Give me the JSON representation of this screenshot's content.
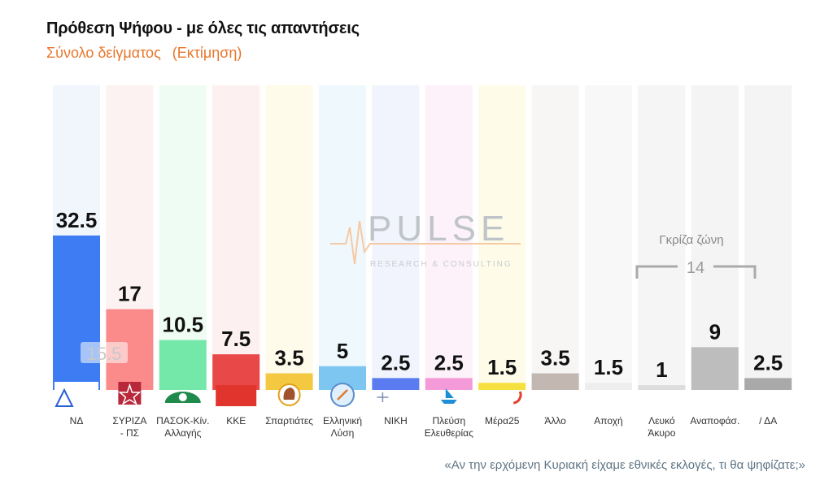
{
  "title": "Πρόθεση Ψήφου - με όλες τις απαντήσεις",
  "subtitle": "Σύνολο δείγματος",
  "subtitle_note": "(Εκτίμηση)",
  "question": "«Αν την ερχόμενη Κυριακή είχαμε εθνικές εκλογές, τι θα ψηφίζατε;»",
  "watermark": {
    "name": "PULSE",
    "tagline": "RESEARCH & CONSULTING"
  },
  "grey_zone": {
    "label": "Γκρίζα ζώνη",
    "value": "14"
  },
  "chart_data": {
    "type": "bar",
    "title": "Πρόθεση Ψήφου - με όλες τις απαντήσεις",
    "subtitle": "Σύνολο δείγματος (Εκτίμηση)",
    "xlabel": "",
    "ylabel": "",
    "ylim": [
      0,
      45
    ],
    "grid": false,
    "categories": [
      {
        "label": "ΝΔ",
        "value": 32.5,
        "color": "#3d7cf2",
        "light": "#f1f6fd"
      },
      {
        "label": "ΣΥΡΙΖΑ\n- ΠΣ",
        "value": 17,
        "color": "#fb8a8a",
        "light": "#fdf2f2"
      },
      {
        "label": "ΠΑΣΟΚ-Κίν.\nΑλλαγής",
        "value": 10.5,
        "color": "#74e8a8",
        "light": "#eefcf3"
      },
      {
        "label": "ΚΚΕ",
        "value": 7.5,
        "color": "#e84848",
        "light": "#fdf0f0"
      },
      {
        "label": "Σπαρτιάτες",
        "value": 3.5,
        "color": "#f5c842",
        "light": "#fefbea"
      },
      {
        "label": "Ελληνική\nΛύση",
        "value": 5,
        "color": "#7ec6f2",
        "light": "#eff8fd"
      },
      {
        "label": "ΝΙΚΗ",
        "value": 2.5,
        "color": "#5a7cf0",
        "light": "#f1f3fd"
      },
      {
        "label": "Πλεύση\nΕλευθερίας",
        "value": 2.5,
        "color": "#f59ad8",
        "light": "#fdf2f9"
      },
      {
        "label": "Μέρα25",
        "value": 1.5,
        "color": "#f5e040",
        "light": "#fefce9"
      },
      {
        "label": "Άλλο",
        "value": 3.5,
        "color": "#c3b7b2",
        "light": "#f7f6f5"
      },
      {
        "label": "Αποχή",
        "value": 1.5,
        "color": "#eeeeee",
        "light": "#f8f8f8"
      },
      {
        "label": "Λευκό\nΆκυρο",
        "value": 1,
        "color": "#dddddd",
        "light": "#f5f5f5"
      },
      {
        "label": "Αναποφάσ.",
        "value": 9,
        "color": "#bdbdbd",
        "light": "#f4f4f4"
      },
      {
        "label": "/ ΔΑ",
        "value": 2.5,
        "color": "#a9a9a9",
        "light": "#f4f4f4"
      }
    ],
    "annotations": [
      {
        "category": "ΝΔ",
        "value": 15.5
      }
    ]
  }
}
